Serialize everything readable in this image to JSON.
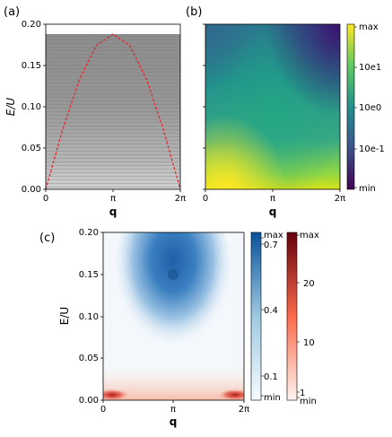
{
  "panels": [
    {
      "label": "(a)",
      "xlabel": "q",
      "ylabel": "E/U",
      "yticks": [
        "0.00",
        "0.05",
        "0.10",
        "0.15",
        "0.20"
      ],
      "xticks": [
        "0",
        "π",
        "2π"
      ]
    },
    {
      "label": "(b)",
      "xlabel": "q",
      "xticks": [
        "0",
        "π",
        "2π"
      ],
      "colorbar_labels": [
        "max",
        "10e1",
        "10e0",
        "10e-1",
        "min"
      ]
    },
    {
      "label": "(c)",
      "xlabel": "q",
      "ylabel": "E/U",
      "yticks": [
        "0.00",
        "0.05",
        "0.10",
        "0.15",
        "0.20"
      ],
      "xticks": [
        "0",
        "π",
        "2π"
      ],
      "colorbar_blue_labels": [
        "max",
        "0.7",
        "0.4",
        "0.1",
        "min"
      ],
      "colorbar_red_labels": [
        "max",
        "20",
        "10",
        "1",
        "min"
      ]
    }
  ],
  "colors": {
    "dashed_curve": "#e8262a",
    "blue_peak": "#1f5fa8",
    "red_peak": "#b01818"
  },
  "chart_data": [
    {
      "type": "heatmap",
      "panel": "(a)",
      "x_range": [
        0,
        6.283
      ],
      "ylim": [
        0,
        0.2
      ],
      "upper_cutoff": 0.188,
      "dispersion_curve": {
        "style": "dashed",
        "x": [
          0,
          0.785,
          1.571,
          2.356,
          3.142,
          3.927,
          4.712,
          5.498,
          6.283
        ],
        "y": [
          0,
          0.072,
          0.133,
          0.174,
          0.188,
          0.174,
          0.133,
          0.072,
          0
        ]
      }
    },
    {
      "type": "heatmap",
      "panel": "(b)",
      "x_range": [
        0,
        6.283
      ],
      "scale": "log"
    },
    {
      "type": "heatmap",
      "panel": "(c)",
      "x_range": [
        0,
        6.283
      ],
      "ylim": [
        0,
        0.2
      ],
      "blue_peak": {
        "q": 3.142,
        "E": 0.15
      },
      "red_peaks": [
        {
          "q": 0.3,
          "E": 0.005
        },
        {
          "q": 5.98,
          "E": 0.005
        }
      ]
    }
  ]
}
